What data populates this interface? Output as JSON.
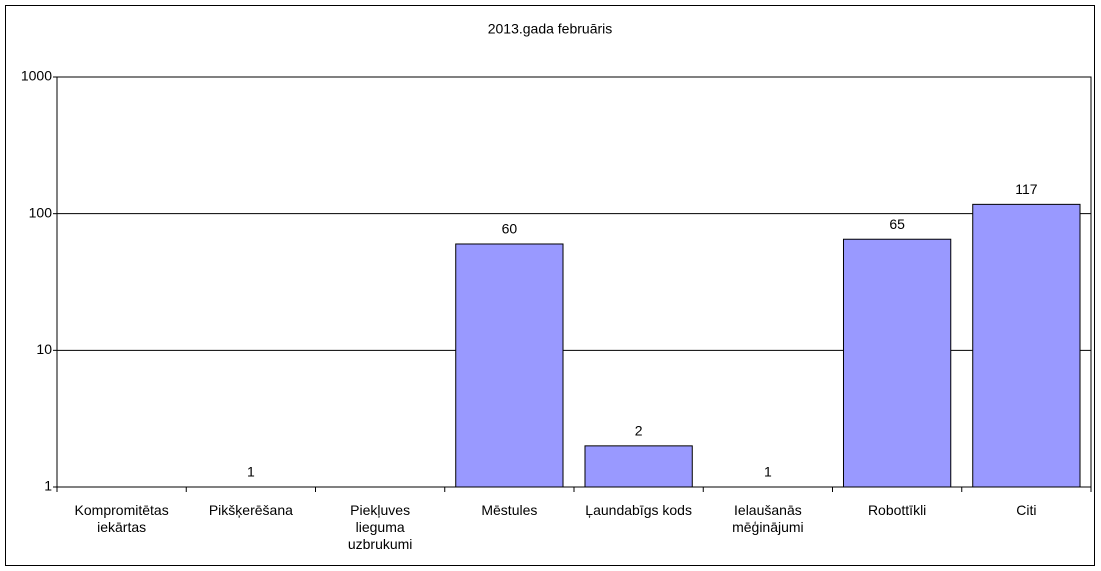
{
  "chart_data": {
    "type": "bar",
    "title": "2013.gada februāris",
    "categories": [
      "Kompromitētas\niekārtas",
      "Pikšķerēšana",
      "Piekļuves\nlieguma\nuzbrukumi",
      "Mēstules",
      "Ļaundabīgs kods",
      "Ielaušanās\nmēģinājumi",
      "Robottīkli",
      "Citi"
    ],
    "values": [
      null,
      1,
      null,
      60,
      2,
      1,
      65,
      117
    ],
    "color": "#9999ff",
    "ylim": [
      1,
      1000
    ],
    "yticks": [
      1,
      10,
      100,
      1000
    ],
    "log_scale": true,
    "grid": true
  }
}
